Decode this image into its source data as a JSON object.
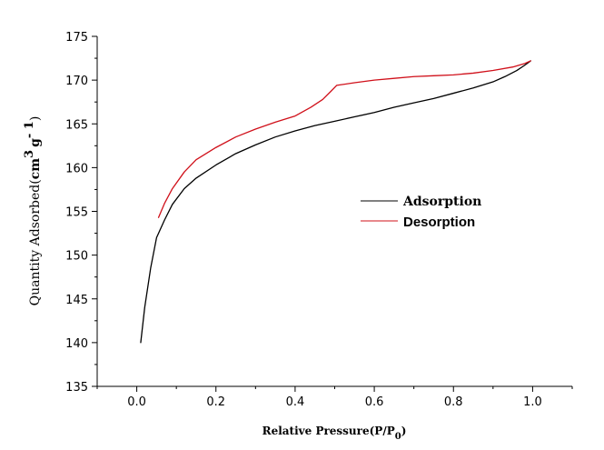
{
  "chart_data": {
    "type": "line",
    "xlabel": "Relative Pressure(P/P0)",
    "xlabel_parts": {
      "main": "Relative Pressure(P/P",
      "sub": "0",
      "close": ")"
    },
    "ylabel": "Quantity Adsorbed(cm3 g-1)",
    "ylabel_parts": {
      "main": "Quantity Adsorbed(",
      "unit1": "cm",
      "sup1": "3",
      "unit2": "g",
      "sup2": "- 1",
      "close": ")"
    },
    "xlim": [
      -0.1,
      1.1
    ],
    "ylim": [
      135,
      175
    ],
    "xticks": [
      0.0,
      0.2,
      0.4,
      0.6,
      0.8,
      1.0
    ],
    "xtick_labels": [
      "0.0",
      "0.2",
      "0.4",
      "0.6",
      "0.8",
      "1.0"
    ],
    "yticks": [
      135,
      140,
      145,
      150,
      155,
      160,
      165,
      170,
      175
    ],
    "ytick_labels": [
      "135",
      "140",
      "145",
      "150",
      "155",
      "160",
      "165",
      "170",
      "175"
    ],
    "grid": false,
    "legend_position": "center-right",
    "series": [
      {
        "name": "Adsorption",
        "color": "#000000",
        "x": [
          0.01,
          0.02,
          0.035,
          0.05,
          0.07,
          0.09,
          0.12,
          0.15,
          0.2,
          0.25,
          0.3,
          0.35,
          0.4,
          0.45,
          0.5,
          0.55,
          0.6,
          0.65,
          0.7,
          0.75,
          0.8,
          0.85,
          0.9,
          0.93,
          0.96,
          0.98,
          0.995
        ],
        "y": [
          140.0,
          144.0,
          148.5,
          152.0,
          154.0,
          155.8,
          157.6,
          158.8,
          160.3,
          161.6,
          162.6,
          163.5,
          164.2,
          164.8,
          165.3,
          165.8,
          166.3,
          166.9,
          167.4,
          167.9,
          168.5,
          169.1,
          169.8,
          170.4,
          171.1,
          171.7,
          172.2
        ]
      },
      {
        "name": "Desorption",
        "color": "#d0101a",
        "x": [
          0.055,
          0.07,
          0.09,
          0.12,
          0.15,
          0.2,
          0.25,
          0.3,
          0.35,
          0.4,
          0.44,
          0.47,
          0.49,
          0.505,
          0.55,
          0.6,
          0.65,
          0.7,
          0.75,
          0.8,
          0.85,
          0.9,
          0.95,
          0.98,
          0.995
        ],
        "y": [
          154.3,
          155.9,
          157.6,
          159.5,
          160.9,
          162.3,
          163.5,
          164.4,
          165.2,
          165.9,
          166.9,
          167.8,
          168.7,
          169.4,
          169.7,
          170.0,
          170.2,
          170.4,
          170.5,
          170.6,
          170.8,
          171.1,
          171.5,
          171.9,
          172.2
        ]
      }
    ]
  }
}
